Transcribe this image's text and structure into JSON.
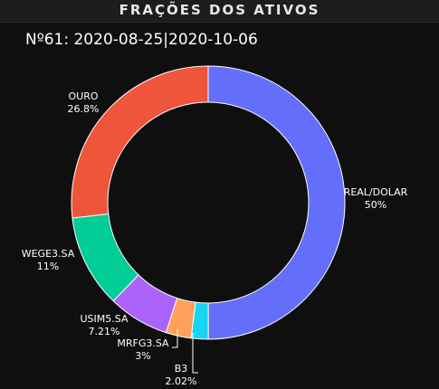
{
  "header": {
    "title": "FRAÇÕES DOS ATIVOS"
  },
  "chart_data": {
    "type": "pie",
    "donut": true,
    "title": "Nº61: 2020-08-25|2020-10-06",
    "slices": [
      {
        "label": "REAL/DOLAR",
        "percent_text": "50%",
        "value": 50.0,
        "color": "#636efa"
      },
      {
        "label": "B3",
        "percent_text": "2.02%",
        "value": 2.02,
        "color": "#19d3f3"
      },
      {
        "label": "MRFG3.SA",
        "percent_text": "3%",
        "value": 3.0,
        "color": "#ffa15a"
      },
      {
        "label": "USIM5.SA",
        "percent_text": "7.21%",
        "value": 7.21,
        "color": "#ab63fa"
      },
      {
        "label": "WEGE3.SA",
        "percent_text": "11%",
        "value": 11.0,
        "color": "#00cc96"
      },
      {
        "label": "OURO",
        "percent_text": "26.8%",
        "value": 26.8,
        "color": "#ef553b"
      }
    ]
  }
}
